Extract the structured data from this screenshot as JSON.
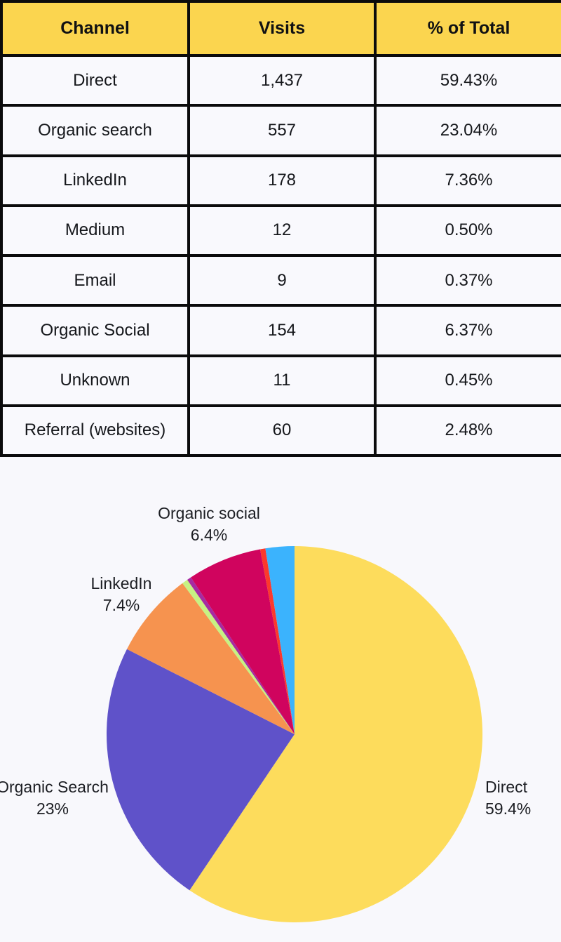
{
  "page": {
    "background": "#F8F8FC"
  },
  "table": {
    "header_bg": "#FBD54F",
    "headers": [
      "Channel",
      "Visits",
      "% of Total"
    ],
    "rows": [
      {
        "channel": "Direct",
        "visits": "1,437",
        "pct": "59.43%"
      },
      {
        "channel": "Organic search",
        "visits": "557",
        "pct": "23.04%"
      },
      {
        "channel": "LinkedIn",
        "visits": "178",
        "pct": "7.36%"
      },
      {
        "channel": "Medium",
        "visits": "12",
        "pct": "0.50%"
      },
      {
        "channel": "Email",
        "visits": "9",
        "pct": "0.37%"
      },
      {
        "channel": "Organic Social",
        "visits": "154",
        "pct": "6.37%"
      },
      {
        "channel": "Unknown",
        "visits": "11",
        "pct": "0.45%"
      },
      {
        "channel": "Referral (websites)",
        "visits": "60",
        "pct": "2.48%"
      }
    ]
  },
  "chart_data": {
    "type": "pie",
    "title": "",
    "start_angle_deg": 0,
    "direction": "clockwise",
    "slices": [
      {
        "label": "Direct",
        "value": 59.43,
        "color": "#FDDC5C"
      },
      {
        "label": "Organic Search",
        "value": 23.04,
        "color": "#5F52C9"
      },
      {
        "label": "LinkedIn",
        "value": 7.36,
        "color": "#F6934F"
      },
      {
        "label": "Medium",
        "value": 0.5,
        "color": "#C7F283"
      },
      {
        "label": "Email",
        "value": 0.37,
        "color": "#A62BA2"
      },
      {
        "label": "Organic social",
        "value": 6.37,
        "color": "#D0045E"
      },
      {
        "label": "Unknown",
        "value": 0.45,
        "color": "#FB392C"
      },
      {
        "label": "Referral (websites)",
        "value": 2.48,
        "color": "#3BB3FD"
      }
    ],
    "callouts": {
      "organic_social": {
        "line1": "Organic social",
        "line2": "6.4%"
      },
      "linkedin": {
        "line1": "LinkedIn",
        "line2": "7.4%"
      },
      "organic_search": {
        "line1": "Organic Search",
        "line2": "23%"
      },
      "direct": {
        "line1": "Direct",
        "line2": "59.4%"
      }
    }
  }
}
